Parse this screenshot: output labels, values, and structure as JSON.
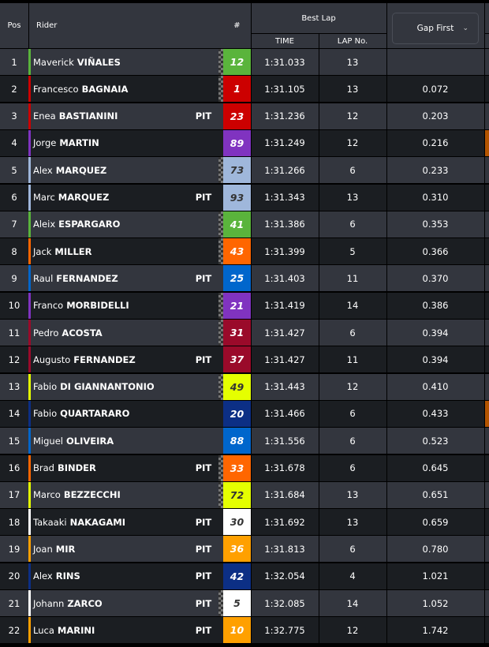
{
  "header": {
    "pos": "Pos",
    "rider": "Rider",
    "number": "#",
    "best_lap": "Best Lap",
    "time": "TIME",
    "lap_no": "LAP No.",
    "gap_dropdown": "Gap First",
    "chevron": "chevron-down-icon"
  },
  "rows": [
    {
      "pos": "1",
      "first": "Maverick",
      "last": "VIÑALES",
      "pit": "",
      "num": "12",
      "color": "#5ab43c",
      "numText": "#ffffff",
      "flag": true,
      "time": "1:31.033",
      "lap": "13",
      "gap": "",
      "mark": ""
    },
    {
      "pos": "2",
      "first": "Francesco",
      "last": "BAGNAIA",
      "pit": "",
      "num": "1",
      "color": "#cc0000",
      "numText": "#ffffff",
      "flag": true,
      "time": "1:31.105",
      "lap": "13",
      "gap": "0.072",
      "mark": ""
    },
    {
      "pos": "3",
      "first": "Enea",
      "last": "BASTIANINI",
      "pit": "PIT",
      "num": "23",
      "color": "#cc0000",
      "numText": "#ffffff",
      "flag": false,
      "time": "1:31.236",
      "lap": "12",
      "gap": "0.203",
      "mark": ""
    },
    {
      "pos": "4",
      "first": "Jorge",
      "last": "MARTIN",
      "pit": "",
      "num": "89",
      "color": "#8033c0",
      "numText": "#ffffff",
      "flag": false,
      "time": "1:31.249",
      "lap": "12",
      "gap": "0.216",
      "mark": "#b35400"
    },
    {
      "pos": "5",
      "first": "Alex",
      "last": "MARQUEZ",
      "pit": "",
      "num": "73",
      "color": "#9fb7db",
      "numText": "#333333",
      "flag": true,
      "time": "1:31.266",
      "lap": "6",
      "gap": "0.233",
      "mark": ""
    },
    {
      "pos": "6",
      "first": "Marc",
      "last": "MARQUEZ",
      "pit": "PIT",
      "num": "93",
      "color": "#9fb7db",
      "numText": "#333333",
      "flag": false,
      "time": "1:31.343",
      "lap": "13",
      "gap": "0.310",
      "mark": ""
    },
    {
      "pos": "7",
      "first": "Aleix",
      "last": "ESPARGARO",
      "pit": "",
      "num": "41",
      "color": "#5ab43c",
      "numText": "#ffffff",
      "flag": true,
      "time": "1:31.386",
      "lap": "6",
      "gap": "0.353",
      "mark": ""
    },
    {
      "pos": "8",
      "first": "Jack",
      "last": "MILLER",
      "pit": "",
      "num": "43",
      "color": "#ff6600",
      "numText": "#ffffff",
      "flag": true,
      "time": "1:31.399",
      "lap": "5",
      "gap": "0.366",
      "mark": ""
    },
    {
      "pos": "9",
      "first": "Raul",
      "last": "FERNANDEZ",
      "pit": "PIT",
      "num": "25",
      "color": "#0066cc",
      "numText": "#ffffff",
      "flag": false,
      "time": "1:31.403",
      "lap": "11",
      "gap": "0.370",
      "mark": ""
    },
    {
      "pos": "10",
      "first": "Franco",
      "last": "MORBIDELLI",
      "pit": "",
      "num": "21",
      "color": "#8033c0",
      "numText": "#ffffff",
      "flag": true,
      "time": "1:31.419",
      "lap": "14",
      "gap": "0.386",
      "mark": ""
    },
    {
      "pos": "11",
      "first": "Pedro",
      "last": "ACOSTA",
      "pit": "",
      "num": "31",
      "color": "#9a0a2a",
      "numText": "#ffffff",
      "flag": true,
      "time": "1:31.427",
      "lap": "6",
      "gap": "0.394",
      "mark": ""
    },
    {
      "pos": "12",
      "first": "Augusto",
      "last": "FERNANDEZ",
      "pit": "PIT",
      "num": "37",
      "color": "#9a0a2a",
      "numText": "#ffffff",
      "flag": false,
      "time": "1:31.427",
      "lap": "11",
      "gap": "0.394",
      "mark": ""
    },
    {
      "pos": "13",
      "first": "Fabio",
      "last": "DI GIANNANTONIO",
      "pit": "",
      "num": "49",
      "color": "#e5ff00",
      "numText": "#333333",
      "flag": true,
      "time": "1:31.443",
      "lap": "12",
      "gap": "0.410",
      "mark": ""
    },
    {
      "pos": "14",
      "first": "Fabio",
      "last": "QUARTARARO",
      "pit": "",
      "num": "20",
      "color": "#0c2f85",
      "numText": "#ffffff",
      "flag": false,
      "time": "1:31.466",
      "lap": "6",
      "gap": "0.433",
      "mark": "#b35400"
    },
    {
      "pos": "15",
      "first": "Miguel",
      "last": "OLIVEIRA",
      "pit": "",
      "num": "88",
      "color": "#0066cc",
      "numText": "#ffffff",
      "flag": false,
      "time": "1:31.556",
      "lap": "6",
      "gap": "0.523",
      "mark": ""
    },
    {
      "pos": "16",
      "first": "Brad",
      "last": "BINDER",
      "pit": "PIT",
      "num": "33",
      "color": "#ff6600",
      "numText": "#ffffff",
      "flag": true,
      "time": "1:31.678",
      "lap": "6",
      "gap": "0.645",
      "mark": ""
    },
    {
      "pos": "17",
      "first": "Marco",
      "last": "BEZZECCHI",
      "pit": "",
      "num": "72",
      "color": "#e5ff00",
      "numText": "#333333",
      "flag": true,
      "time": "1:31.684",
      "lap": "13",
      "gap": "0.651",
      "mark": ""
    },
    {
      "pos": "18",
      "first": "Takaaki",
      "last": "NAKAGAMI",
      "pit": "PIT",
      "num": "30",
      "color": "#ffffff",
      "numText": "#333333",
      "flag": false,
      "time": "1:31.692",
      "lap": "13",
      "gap": "0.659",
      "mark": ""
    },
    {
      "pos": "19",
      "first": "Joan",
      "last": "MIR",
      "pit": "PIT",
      "num": "36",
      "color": "#ffa000",
      "numText": "#ffffff",
      "flag": false,
      "time": "1:31.813",
      "lap": "6",
      "gap": "0.780",
      "mark": ""
    },
    {
      "pos": "20",
      "first": "Alex",
      "last": "RINS",
      "pit": "PIT",
      "num": "42",
      "color": "#0c2f85",
      "numText": "#ffffff",
      "flag": false,
      "time": "1:32.054",
      "lap": "4",
      "gap": "1.021",
      "mark": ""
    },
    {
      "pos": "21",
      "first": "Johann",
      "last": "ZARCO",
      "pit": "PIT",
      "num": "5",
      "color": "#ffffff",
      "numText": "#333333",
      "flag": true,
      "time": "1:32.085",
      "lap": "14",
      "gap": "1.052",
      "mark": ""
    },
    {
      "pos": "22",
      "first": "Luca",
      "last": "MARINI",
      "pit": "PIT",
      "num": "10",
      "color": "#ffa000",
      "numText": "#ffffff",
      "flag": false,
      "time": "1:32.775",
      "lap": "12",
      "gap": "1.742",
      "mark": ""
    }
  ]
}
